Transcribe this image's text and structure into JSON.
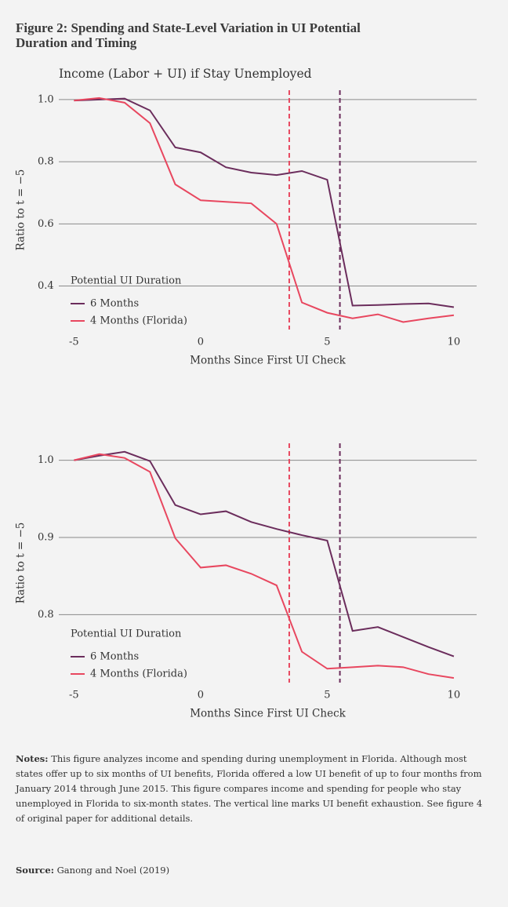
{
  "header": {
    "title": "Figure 2: Spending and State-Level Variation in UI Potential Duration and Timing"
  },
  "chart_data": [
    {
      "type": "line",
      "title": "Income (Labor + UI) if Stay Unemployed",
      "x_label": "Months Since First UI Check",
      "y_label": "Ratio to t = −5",
      "x": [
        -5,
        -4,
        -3,
        -2,
        -1,
        0,
        1,
        2,
        3,
        4,
        5,
        6,
        7,
        8,
        9,
        10
      ],
      "xlim": [
        -5.6,
        10.9
      ],
      "xticks": [
        -5,
        0,
        5,
        10
      ],
      "ylim": [
        0.26,
        1.03
      ],
      "yticks": [
        0.4,
        0.6,
        0.8,
        {
          "value": 1,
          "label": "1.0"
        }
      ],
      "grid": true,
      "legend_title": "Potential UI Duration",
      "legend": "lower left",
      "series": [
        {
          "name": "6 Months",
          "color": "#6b2d5c",
          "values": [
            0.997,
            1.0,
            1.003,
            0.965,
            0.846,
            0.83,
            0.782,
            0.765,
            0.757,
            0.77,
            0.742,
            0.337,
            0.339,
            0.342,
            0.344,
            0.332
          ]
        },
        {
          "name": "4 Months (Florida)",
          "color": "#e8475f",
          "values": [
            0.997,
            1.005,
            0.99,
            0.924,
            0.727,
            0.676,
            0.671,
            0.666,
            0.6,
            0.347,
            0.314,
            0.296,
            0.309,
            0.284,
            0.296,
            0.306
          ]
        }
      ],
      "vlines": [
        {
          "x": 3.5,
          "color": "#e8475f"
        },
        {
          "x": 5.5,
          "color": "#6b2d5c"
        }
      ]
    },
    {
      "type": "line",
      "x_label": "Months Since First UI Check",
      "y_label": "Ratio to t = −5",
      "x": [
        -5,
        -4,
        -3,
        -2,
        -1,
        0,
        1,
        2,
        3,
        4,
        5,
        6,
        7,
        8,
        9,
        10
      ],
      "xlim": [
        -5.6,
        10.9
      ],
      "xticks": [
        -5,
        0,
        5,
        10
      ],
      "ylim": [
        0.712,
        1.022
      ],
      "yticks": [
        0.8,
        0.9,
        {
          "value": 1,
          "label": "1.0"
        }
      ],
      "grid": true,
      "legend_title": "Potential UI Duration",
      "legend": "lower left",
      "series": [
        {
          "name": "6 Months",
          "color": "#6b2d5c",
          "values": [
            1.0,
            1.006,
            1.011,
            0.999,
            0.942,
            0.93,
            0.934,
            0.92,
            0.911,
            0.903,
            0.896,
            0.779,
            0.784,
            0.771,
            0.758,
            0.746
          ]
        },
        {
          "name": "4 Months (Florida)",
          "color": "#e8475f",
          "values": [
            1.0,
            1.008,
            1.003,
            0.985,
            0.899,
            0.861,
            0.864,
            0.853,
            0.838,
            0.752,
            0.73,
            0.732,
            0.734,
            0.732,
            0.723,
            0.718
          ]
        }
      ],
      "vlines": [
        {
          "x": 3.5,
          "color": "#e8475f"
        },
        {
          "x": 5.5,
          "color": "#6b2d5c"
        }
      ]
    }
  ],
  "notes": {
    "label": "Notes:",
    "text": "This figure analyzes income and spending during unemployment in Florida. Although most states offer up to six months of UI benefits, Florida offered a low UI benefit of up to four months from January 2014 through June 2015. This figure compares income and spending for people who stay unemployed in Florida to six-month states. The vertical line marks UI benefit exhaustion. See figure 4 of original paper for additional details."
  },
  "source": {
    "label": "Source:",
    "text": "Ganong and Noel (2019)"
  }
}
